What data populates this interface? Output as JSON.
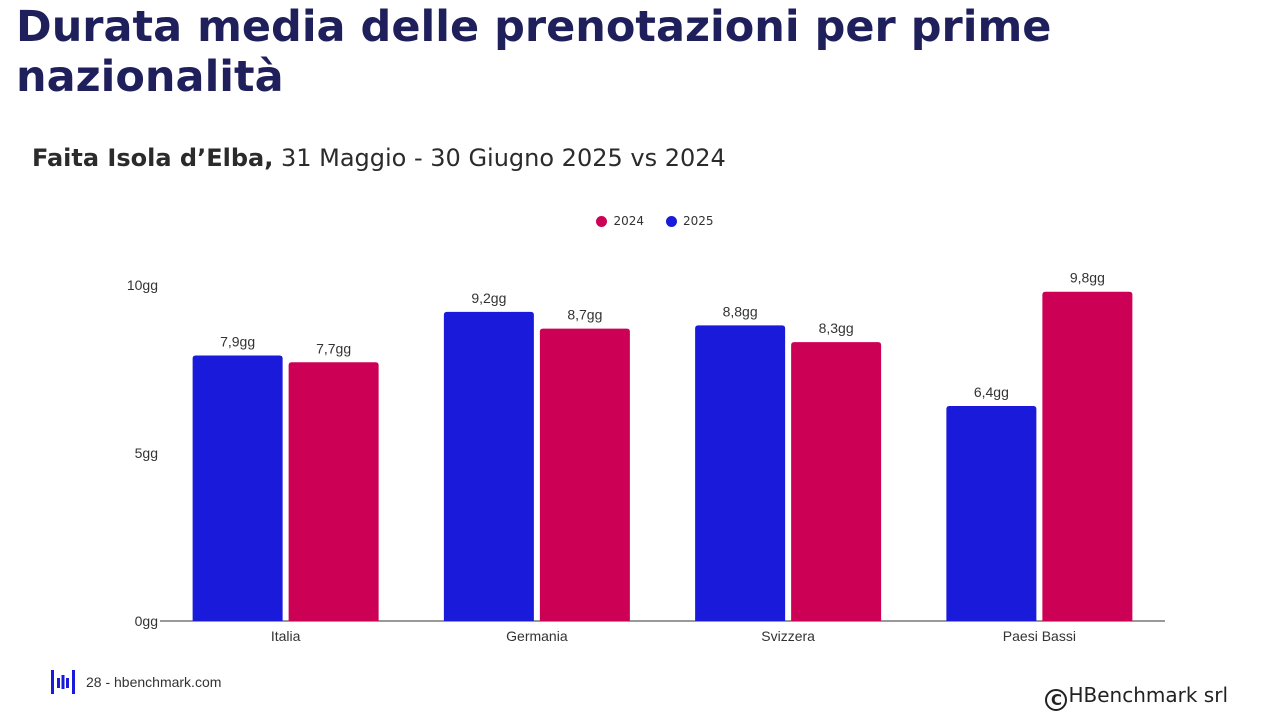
{
  "header": {
    "title": "Durata media delle prenotazioni per prime nazionalità",
    "subtitle_bold": "Faita Isola d’Elba,",
    "subtitle_rest": " 31 Maggio - 30 Giugno 2025 vs 2024"
  },
  "legend": [
    {
      "label": "2024",
      "color": "#cc0055"
    },
    {
      "label": "2025",
      "color": "#1a1adb"
    }
  ],
  "footer": {
    "page_text": "28 - hbenchmark.com",
    "copyright_symbol": "C",
    "copyright_text": "HBenchmark srl",
    "logo_icon": "hbenchmark-logo-icon"
  },
  "chart_data": {
    "type": "bar",
    "categories": [
      "Italia",
      "Germania",
      "Svizzera",
      "Paesi Bassi"
    ],
    "series": [
      {
        "name": "2025",
        "color": "#1a1adb",
        "values": [
          7.9,
          9.2,
          8.8,
          6.4
        ],
        "labels": [
          "7,9gg",
          "9,2gg",
          "8,8gg",
          "6,4gg"
        ]
      },
      {
        "name": "2024",
        "color": "#cc0055",
        "values": [
          7.7,
          8.7,
          8.3,
          9.8
        ],
        "labels": [
          "7,7gg",
          "8,7gg",
          "8,3gg",
          "9,8gg"
        ]
      }
    ],
    "yticks": [
      {
        "value": 0,
        "label": "0gg"
      },
      {
        "value": 5,
        "label": "5gg"
      },
      {
        "value": 10,
        "label": "10gg"
      }
    ],
    "ylim": [
      0,
      10
    ],
    "grid": false,
    "legend_position": "top-center"
  }
}
